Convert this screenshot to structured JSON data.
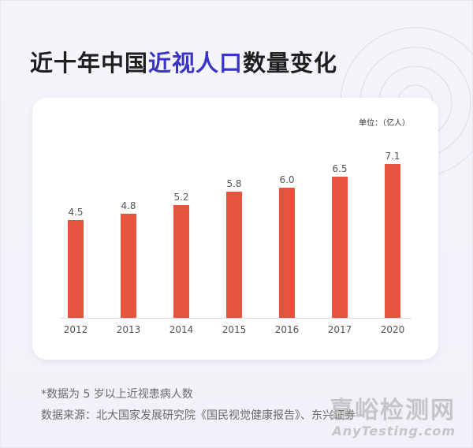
{
  "title": {
    "prefix": "近十年中国",
    "highlight": "近视人口",
    "suffix": "数量变化"
  },
  "colors": {
    "bar": "#e8533d",
    "highlight": "#3b34c9",
    "background": "#f2f3fa",
    "card": "#ffffff"
  },
  "chart_data": {
    "type": "bar",
    "title": "近十年中国近视人口数量变化",
    "unit_label": "单位：（亿人）",
    "xlabel": "",
    "ylabel": "",
    "categories": [
      "2012",
      "2013",
      "2014",
      "2015",
      "2016",
      "2017",
      "2020"
    ],
    "values": [
      4.5,
      4.8,
      5.2,
      5.8,
      6.0,
      6.5,
      7.1
    ],
    "value_labels": [
      "4.5",
      "4.8",
      "5.2",
      "5.8",
      "6.0",
      "6.5",
      "7.1"
    ],
    "ylim": [
      0,
      7.1
    ],
    "grid": false,
    "legend": null,
    "data_labels": true
  },
  "footer": {
    "note": "*数据为 5 岁以上近视患病人数",
    "source": "数据来源：北大国家发展研究院《国民视觉健康报告》、东兴证券"
  },
  "watermark": {
    "cn": "嘉峪检测网",
    "en": "AnyTesting.com"
  }
}
